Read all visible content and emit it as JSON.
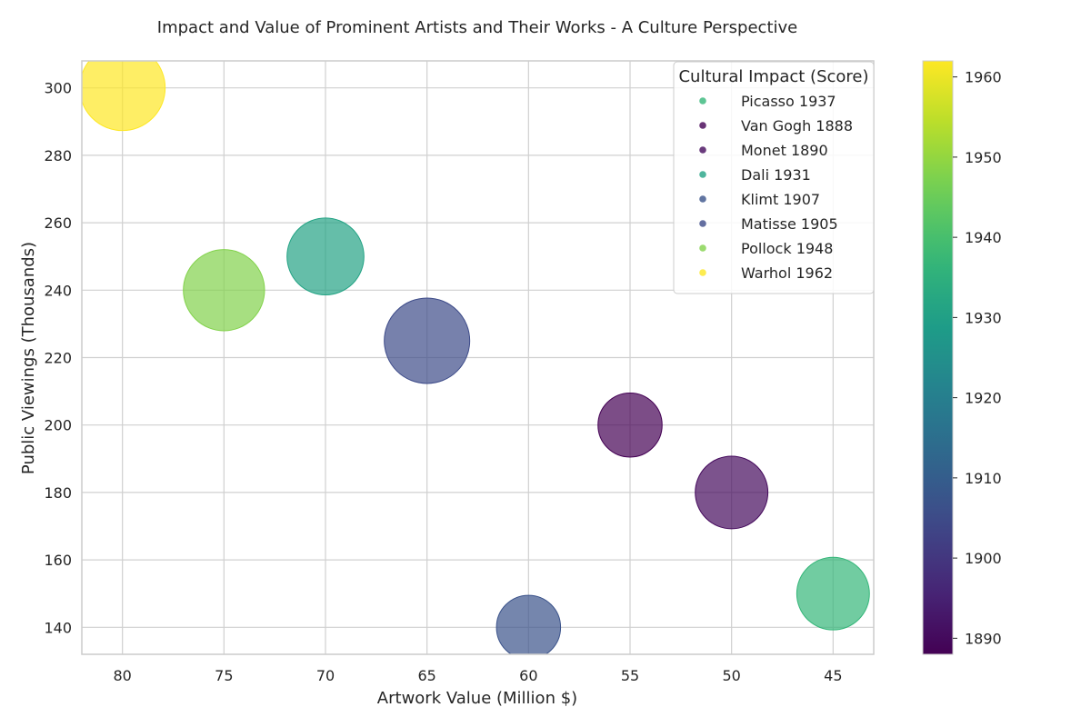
{
  "chart_data": {
    "type": "scatter",
    "title": "Impact and Value of Prominent Artists and Their Works - A Culture Perspective",
    "xlabel": "Artwork Value (Million $)",
    "ylabel": "Public Viewings (Thousands)",
    "xlim": [
      82,
      43
    ],
    "ylim": [
      132,
      308
    ],
    "x_ticks": [
      80,
      75,
      70,
      65,
      60,
      55,
      50,
      45
    ],
    "y_ticks": [
      140,
      160,
      180,
      200,
      220,
      240,
      260,
      280,
      300
    ],
    "x_reversed": true,
    "grid": true,
    "legend_title": "Cultural Impact (Score)",
    "legend_position": "top-right",
    "colorbar": {
      "colormap": "viridis",
      "range": [
        1888,
        1962
      ],
      "ticks": [
        1890,
        1900,
        1910,
        1920,
        1930,
        1940,
        1950,
        1960
      ]
    },
    "points": [
      {
        "label": "Picasso 1937",
        "x": 45,
        "y": 150,
        "year": 1937,
        "impact": 85
      },
      {
        "label": "Van Gogh 1888",
        "x": 55,
        "y": 200,
        "year": 1888,
        "impact": 75
      },
      {
        "label": "Monet 1890",
        "x": 50,
        "y": 180,
        "year": 1890,
        "impact": 85
      },
      {
        "label": "Dali 1931",
        "x": 70,
        "y": 250,
        "year": 1931,
        "impact": 90
      },
      {
        "label": "Klimt 1907",
        "x": 60,
        "y": 140,
        "year": 1907,
        "impact": 75
      },
      {
        "label": "Matisse 1905",
        "x": 65,
        "y": 225,
        "year": 1905,
        "impact": 100
      },
      {
        "label": "Pollock 1948",
        "x": 75,
        "y": 240,
        "year": 1948,
        "impact": 95
      },
      {
        "label": "Warhol 1962",
        "x": 80,
        "y": 300,
        "year": 1962,
        "impact": 100
      }
    ]
  }
}
